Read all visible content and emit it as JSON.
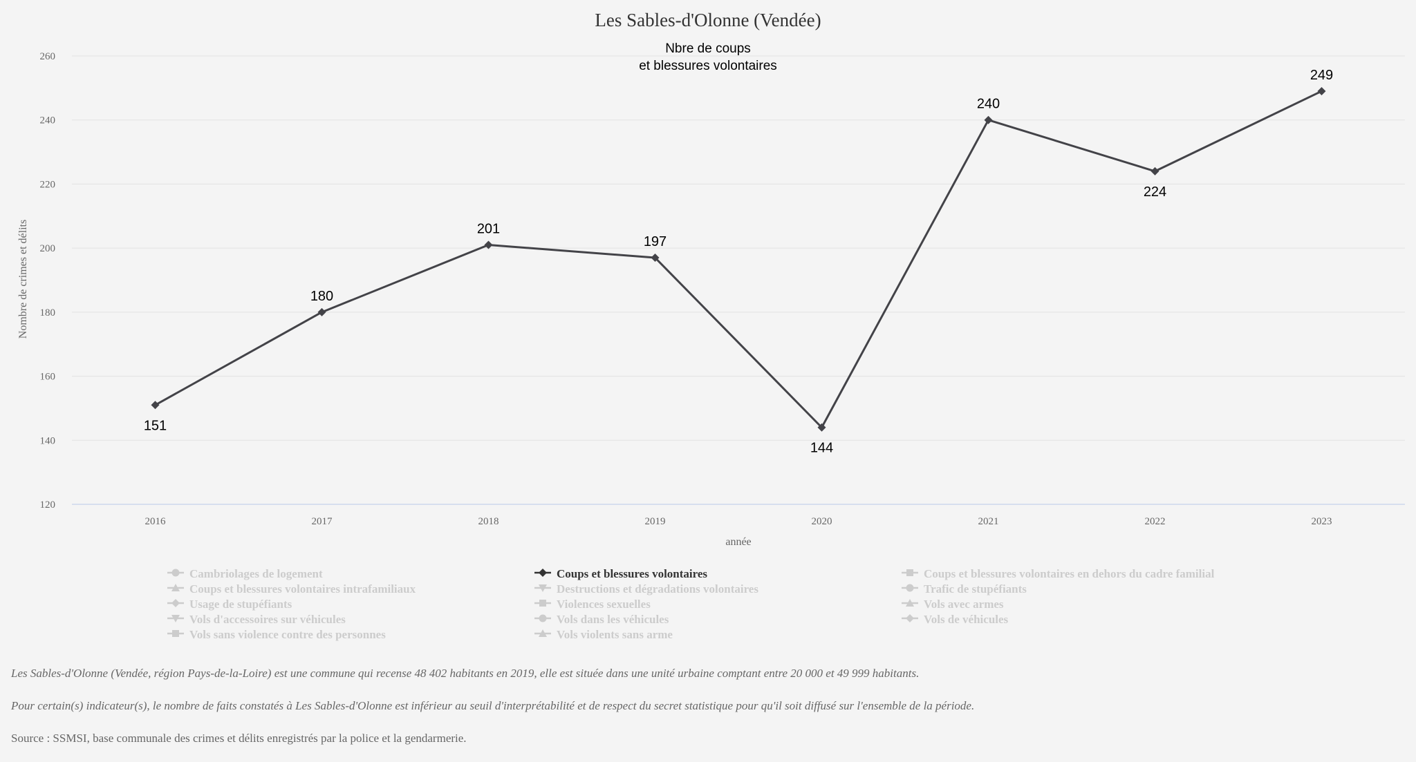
{
  "chart_data": {
    "type": "line",
    "title": "Les Sables-d'Olonne (Vendée)",
    "subtitle_lines": [
      "Nbre de coups",
      "et blessures volontaires"
    ],
    "xlabel": "année",
    "ylabel": "Nombre de crimes et délits",
    "categories": [
      "2016",
      "2017",
      "2018",
      "2019",
      "2020",
      "2021",
      "2022",
      "2023"
    ],
    "ylim": [
      120,
      260
    ],
    "yticks": [
      120,
      140,
      160,
      180,
      200,
      220,
      240,
      260
    ],
    "grid": true,
    "series": [
      {
        "name": "Coups et blessures volontaires",
        "color": "#434348",
        "marker": "diamond",
        "values": [
          151,
          180,
          201,
          197,
          144,
          240,
          224,
          249
        ],
        "label_position": [
          "below",
          "above",
          "above",
          "above",
          "below",
          "above",
          "below",
          "above"
        ]
      }
    ]
  },
  "legend": {
    "items": [
      {
        "label": "Cambriolages de logement",
        "symbol": "circle",
        "active": false
      },
      {
        "label": "Coups et blessures volontaires",
        "symbol": "diamond",
        "active": true
      },
      {
        "label": "Coups et blessures volontaires en dehors du cadre familial",
        "symbol": "square",
        "active": false
      },
      {
        "label": "Coups et blessures volontaires intrafamiliaux",
        "symbol": "triangle",
        "active": false
      },
      {
        "label": "Destructions et dégradations volontaires",
        "symbol": "triangle-down",
        "active": false
      },
      {
        "label": "Trafic de stupéfiants",
        "symbol": "circle",
        "active": false
      },
      {
        "label": "Usage de stupéfiants",
        "symbol": "diamond",
        "active": false
      },
      {
        "label": "Violences sexuelles",
        "symbol": "square",
        "active": false
      },
      {
        "label": "Vols avec armes",
        "symbol": "triangle",
        "active": false
      },
      {
        "label": "Vols d'accessoires sur véhicules",
        "symbol": "triangle-down",
        "active": false
      },
      {
        "label": "Vols dans les véhicules",
        "symbol": "circle",
        "active": false
      },
      {
        "label": "Vols de véhicules",
        "symbol": "diamond",
        "active": false
      },
      {
        "label": "Vols sans violence contre des personnes",
        "symbol": "square",
        "active": false
      },
      {
        "label": "Vols violents sans arme",
        "symbol": "triangle",
        "active": false
      }
    ],
    "inactive_color": "#cccccc",
    "active_color": "#333333"
  },
  "footnotes": {
    "description": "Les Sables-d'Olonne (Vendée, région Pays-de-la-Loire) est une commune qui recense 48 402 habitants en 2019, elle est située dans une unité urbaine comptant entre 20 000 et 49 999 habitants.",
    "secrecy": "Pour certain(s) indicateur(s), le nombre de faits constatés à Les Sables-d'Olonne est inférieur au seuil d'interprétabilité et de respect du secret statistique pour qu'il soit diffusé sur l'ensemble de la période.",
    "source": "Source : SSMSI, base communale des crimes et délits enregistrés par la police et la gendarmerie."
  }
}
